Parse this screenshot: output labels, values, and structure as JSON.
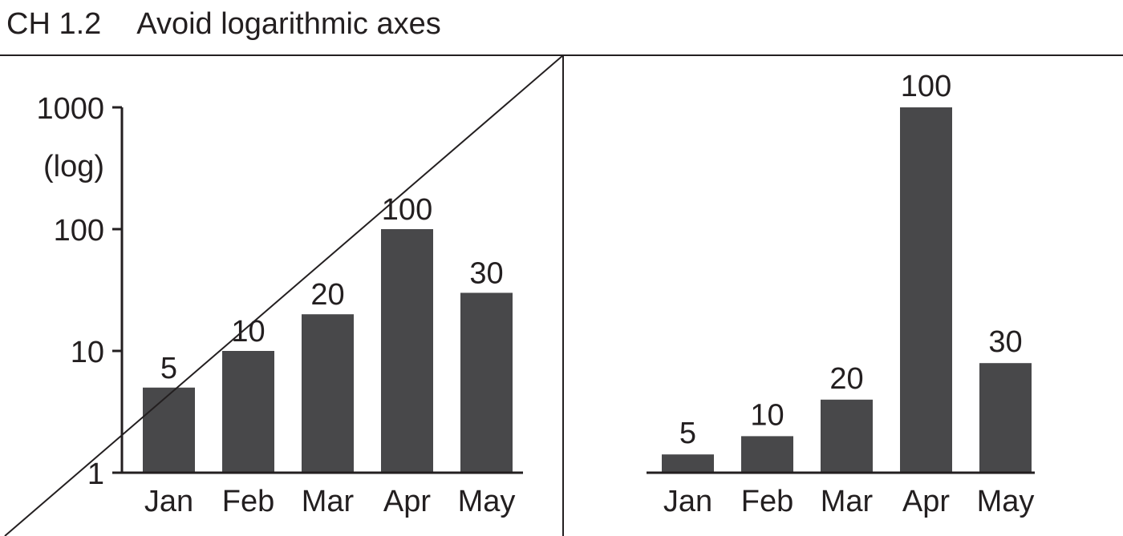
{
  "header": {
    "code": "CH 1.2",
    "title": "Avoid logarithmic axes"
  },
  "colors": {
    "bar": "#48484a",
    "ink": "#231f20",
    "background": "#ffffff"
  },
  "chart_data": [
    {
      "type": "bar",
      "scale": "log",
      "categories": [
        "Jan",
        "Feb",
        "Mar",
        "Apr",
        "May"
      ],
      "values": [
        5,
        10,
        20,
        100,
        30
      ],
      "data_labels": [
        "5",
        "10",
        "20",
        "100",
        "30"
      ],
      "yticks": [
        1,
        10,
        100,
        1000
      ],
      "ytick_labels": [
        "1",
        "10",
        "100",
        "1000"
      ],
      "ylabel": "(log)",
      "ylim": [
        1,
        1000
      ],
      "grid": false,
      "crossed_out": true
    },
    {
      "type": "bar",
      "scale": "linear",
      "categories": [
        "Jan",
        "Feb",
        "Mar",
        "Apr",
        "May"
      ],
      "values": [
        5,
        10,
        20,
        100,
        30
      ],
      "data_labels": [
        "5",
        "10",
        "20",
        "100",
        "30"
      ],
      "ylim": [
        0,
        100
      ],
      "grid": false,
      "y_axis_shown": false
    }
  ]
}
